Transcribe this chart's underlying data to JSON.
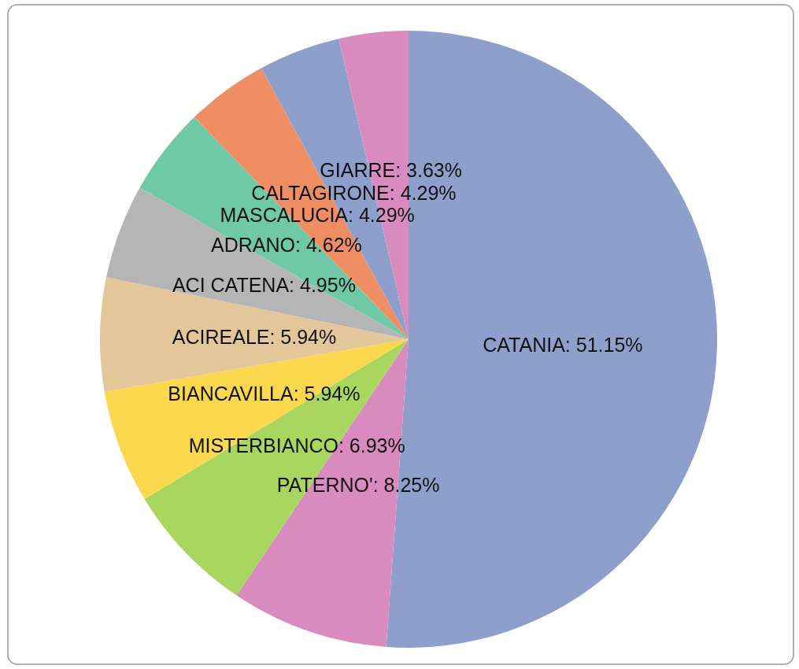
{
  "chart_data": {
    "type": "pie",
    "categories": [
      "CATANIA",
      "PATERNO'",
      "MISTERBIANCO",
      "BIANCAVILLA",
      "ACIREALE",
      "ACI CATENA",
      "ADRANO",
      "MASCALUCIA",
      "CALTAGIRONE",
      "GIARRE"
    ],
    "values": [
      51.15,
      8.25,
      6.93,
      5.94,
      5.94,
      4.95,
      4.62,
      4.29,
      4.29,
      3.63
    ],
    "colors": [
      "#8d9fca",
      "#d98bc0",
      "#a8d65f",
      "#fbd84e",
      "#e3c69a",
      "#b5b5b5",
      "#6fc8a6",
      "#f08e63",
      "#8d9fca",
      "#d98bc0"
    ],
    "value_labels": [
      "51.15%",
      "8.25%",
      "6.93%",
      "5.94%",
      "5.94%",
      "4.95%",
      "4.62%",
      "4.29%",
      "4.29%",
      "3.63%"
    ]
  }
}
